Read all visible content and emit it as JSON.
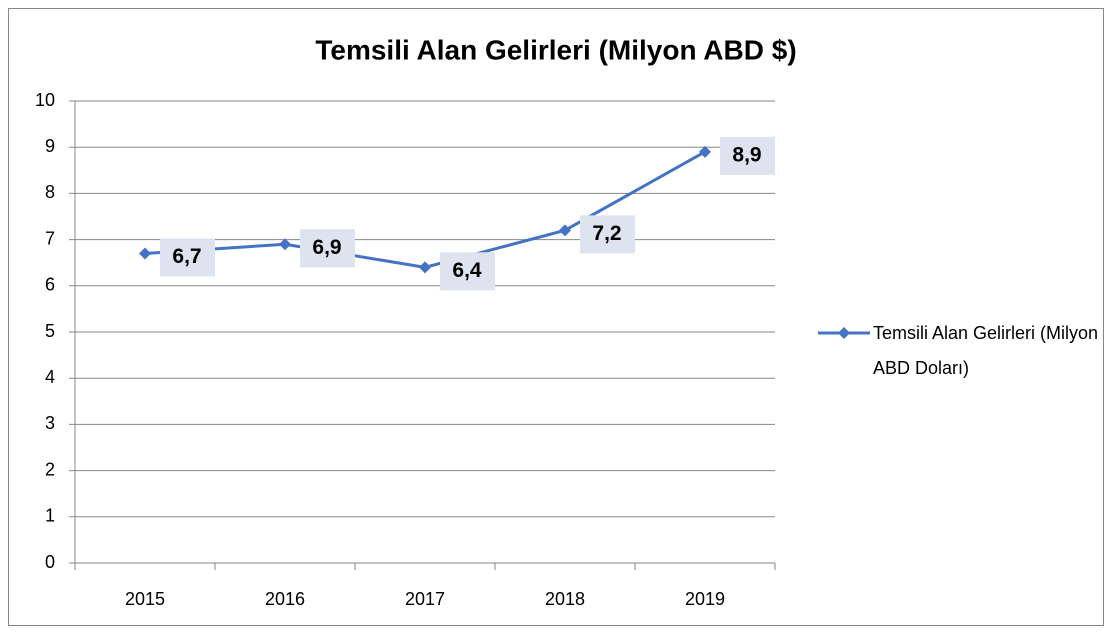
{
  "chart_data": {
    "type": "line",
    "title": "Temsili Alan Gelirleri (Milyon ABD $)",
    "categories": [
      "2015",
      "2016",
      "2017",
      "2018",
      "2019"
    ],
    "series": [
      {
        "name": "Temsili Alan Gelirleri (Milyon ABD Doları)",
        "color": "#4472c4",
        "values": [
          6.7,
          6.9,
          6.4,
          7.2,
          8.9
        ],
        "value_labels": [
          "6,7",
          "6,9",
          "6,4",
          "7,2",
          "8,9"
        ]
      }
    ],
    "ylim": [
      0,
      10
    ],
    "yticks": [
      0,
      1,
      2,
      3,
      4,
      5,
      6,
      7,
      8,
      9,
      10
    ],
    "grid": true,
    "legend": "right"
  }
}
